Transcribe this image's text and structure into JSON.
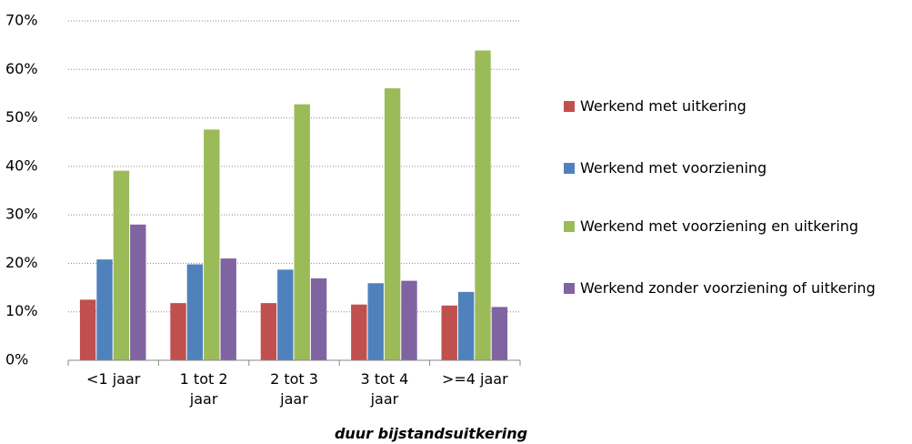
{
  "chart_data": {
    "type": "bar",
    "x_label": "duur bijstandsuitkering",
    "categories": [
      "<1 jaar",
      "1 tot 2 jaar",
      "2 tot 3 jaar",
      "3 tot 4 jaar",
      ">=4 jaar"
    ],
    "series": [
      {
        "name": "Werkend met uitkering",
        "color": "#c0504d",
        "values": [
          12.5,
          11.8,
          11.8,
          11.5,
          11.3
        ]
      },
      {
        "name": "Werkend met voorziening",
        "color": "#4f81bd",
        "values": [
          20.8,
          19.8,
          18.7,
          15.9,
          14.1
        ]
      },
      {
        "name": "Werkend met voorziening en uitkering",
        "color": "#9bbb59",
        "values": [
          39.1,
          47.6,
          52.8,
          56.1,
          63.9
        ]
      },
      {
        "name": "Werkend zonder voorziening of uitkering",
        "color": "#8064a2",
        "values": [
          28.0,
          21.0,
          16.9,
          16.4,
          11.0
        ]
      }
    ],
    "ylim": [
      0,
      70
    ],
    "yticks": [
      {
        "value": 0,
        "label": "0%"
      },
      {
        "value": 10,
        "label": "10%"
      },
      {
        "value": 20,
        "label": "20%"
      },
      {
        "value": 30,
        "label": "30%"
      },
      {
        "value": 40,
        "label": "40%"
      },
      {
        "value": 50,
        "label": "50%"
      },
      {
        "value": 60,
        "label": "60%"
      },
      {
        "value": 70,
        "label": "70%"
      }
    ],
    "grid": true,
    "legend": "right"
  }
}
